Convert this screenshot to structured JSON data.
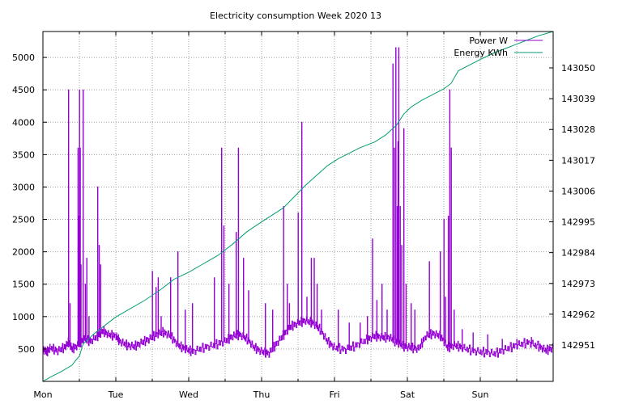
{
  "chart_data": {
    "type": "line",
    "title": "Electricity consumption Week 2020 13",
    "xlabel": "",
    "ylabel": "",
    "y2label": "",
    "grid": true,
    "legend_position": "top-right",
    "x_ticks": [
      "Mon",
      "Tue",
      "Wed",
      "Thu",
      "Fri",
      "Sat",
      "Sun"
    ],
    "xlim_days": [
      0,
      7
    ],
    "y_ticks": [
      500,
      1000,
      1500,
      2000,
      2500,
      3000,
      3500,
      4000,
      4500,
      5000
    ],
    "ylim": [
      0,
      5400
    ],
    "y2_ticks": [
      142951,
      142962,
      142973,
      142984,
      142995,
      143006,
      143017,
      143028,
      143039,
      143050
    ],
    "y2lim": [
      142938,
      143063
    ],
    "series": [
      {
        "name": "Power W",
        "color": "#9400d3",
        "axis": "y",
        "baseline": [
          [
            0.0,
            500
          ],
          [
            0.05,
            450
          ],
          [
            0.1,
            520
          ],
          [
            0.2,
            470
          ],
          [
            0.3,
            530
          ],
          [
            0.35,
            600
          ],
          [
            0.4,
            500
          ],
          [
            0.48,
            560
          ],
          [
            0.55,
            650
          ],
          [
            0.65,
            620
          ],
          [
            0.75,
            700
          ],
          [
            0.82,
            780
          ],
          [
            0.9,
            720
          ],
          [
            1.0,
            700
          ],
          [
            1.05,
            620
          ],
          [
            1.15,
            560
          ],
          [
            1.25,
            540
          ],
          [
            1.35,
            600
          ],
          [
            1.45,
            650
          ],
          [
            1.55,
            720
          ],
          [
            1.65,
            760
          ],
          [
            1.75,
            700
          ],
          [
            1.85,
            560
          ],
          [
            1.95,
            500
          ],
          [
            2.05,
            460
          ],
          [
            2.2,
            520
          ],
          [
            2.35,
            560
          ],
          [
            2.5,
            620
          ],
          [
            2.6,
            700
          ],
          [
            2.7,
            720
          ],
          [
            2.8,
            650
          ],
          [
            2.9,
            520
          ],
          [
            3.0,
            460
          ],
          [
            3.1,
            430
          ],
          [
            3.2,
            580
          ],
          [
            3.3,
            720
          ],
          [
            3.4,
            850
          ],
          [
            3.5,
            900
          ],
          [
            3.6,
            940
          ],
          [
            3.7,
            900
          ],
          [
            3.8,
            800
          ],
          [
            3.9,
            620
          ],
          [
            4.0,
            520
          ],
          [
            4.15,
            490
          ],
          [
            4.3,
            560
          ],
          [
            4.45,
            650
          ],
          [
            4.55,
            700
          ],
          [
            4.65,
            680
          ],
          [
            4.75,
            680
          ],
          [
            4.85,
            600
          ],
          [
            4.95,
            540
          ],
          [
            5.05,
            520
          ],
          [
            5.15,
            500
          ],
          [
            5.25,
            700
          ],
          [
            5.35,
            740
          ],
          [
            5.45,
            700
          ],
          [
            5.55,
            520
          ],
          [
            5.65,
            560
          ],
          [
            5.75,
            520
          ],
          [
            5.9,
            470
          ],
          [
            6.05,
            450
          ],
          [
            6.2,
            430
          ],
          [
            6.35,
            500
          ],
          [
            6.5,
            560
          ],
          [
            6.65,
            600
          ],
          [
            6.8,
            540
          ],
          [
            6.9,
            480
          ],
          [
            7.0,
            520
          ]
        ],
        "spikes": [
          [
            0.35,
            4500
          ],
          [
            0.37,
            1200
          ],
          [
            0.48,
            3600
          ],
          [
            0.49,
            2550
          ],
          [
            0.5,
            4500
          ],
          [
            0.51,
            3600
          ],
          [
            0.52,
            1800
          ],
          [
            0.55,
            4500
          ],
          [
            0.58,
            1500
          ],
          [
            0.6,
            1900
          ],
          [
            0.63,
            1000
          ],
          [
            0.75,
            3000
          ],
          [
            0.77,
            2100
          ],
          [
            0.79,
            1800
          ],
          [
            1.5,
            1700
          ],
          [
            1.55,
            1450
          ],
          [
            1.58,
            1600
          ],
          [
            1.62,
            1000
          ],
          [
            1.75,
            1600
          ],
          [
            1.85,
            2000
          ],
          [
            1.95,
            1100
          ],
          [
            2.05,
            1200
          ],
          [
            2.35,
            1600
          ],
          [
            2.45,
            3600
          ],
          [
            2.48,
            2400
          ],
          [
            2.55,
            1500
          ],
          [
            2.65,
            2300
          ],
          [
            2.68,
            3600
          ],
          [
            2.75,
            1900
          ],
          [
            2.82,
            1400
          ],
          [
            3.05,
            1200
          ],
          [
            3.15,
            1100
          ],
          [
            3.3,
            2700
          ],
          [
            3.35,
            1500
          ],
          [
            3.38,
            1200
          ],
          [
            3.5,
            2600
          ],
          [
            3.55,
            4000
          ],
          [
            3.62,
            1300
          ],
          [
            3.68,
            1900
          ],
          [
            3.72,
            1900
          ],
          [
            3.76,
            1500
          ],
          [
            3.82,
            1100
          ],
          [
            4.05,
            1100
          ],
          [
            4.2,
            900
          ],
          [
            4.35,
            900
          ],
          [
            4.45,
            1000
          ],
          [
            4.52,
            2200
          ],
          [
            4.58,
            1250
          ],
          [
            4.65,
            1500
          ],
          [
            4.72,
            1100
          ],
          [
            4.8,
            4900
          ],
          [
            4.82,
            3600
          ],
          [
            4.84,
            5150
          ],
          [
            4.86,
            2700
          ],
          [
            4.87,
            3700
          ],
          [
            4.88,
            5150
          ],
          [
            4.9,
            2700
          ],
          [
            4.92,
            2100
          ],
          [
            4.95,
            3900
          ],
          [
            4.98,
            1500
          ],
          [
            5.05,
            1200
          ],
          [
            5.1,
            1100
          ],
          [
            5.3,
            1850
          ],
          [
            5.45,
            2000
          ],
          [
            5.5,
            2500
          ],
          [
            5.52,
            1300
          ],
          [
            5.56,
            2550
          ],
          [
            5.58,
            4500
          ],
          [
            5.6,
            3600
          ],
          [
            5.64,
            1100
          ],
          [
            5.75,
            800
          ],
          [
            5.9,
            750
          ],
          [
            6.1,
            720
          ],
          [
            6.3,
            650
          ],
          [
            6.5,
            650
          ],
          [
            6.7,
            680
          ]
        ]
      },
      {
        "name": "Energy KWh",
        "color": "#009e73",
        "axis": "y2",
        "points": [
          [
            0.0,
            142938.0
          ],
          [
            0.1,
            142939.5
          ],
          [
            0.25,
            142941.5
          ],
          [
            0.4,
            142943.8
          ],
          [
            0.45,
            142945.5
          ],
          [
            0.5,
            142947.0
          ],
          [
            0.55,
            142951.3
          ],
          [
            0.7,
            142955.0
          ],
          [
            0.85,
            142958.0
          ],
          [
            1.0,
            142961.0
          ],
          [
            1.2,
            142964.0
          ],
          [
            1.4,
            142967.0
          ],
          [
            1.6,
            142970.5
          ],
          [
            1.8,
            142974.5
          ],
          [
            2.0,
            142977.0
          ],
          [
            2.2,
            142980.0
          ],
          [
            2.4,
            142983.0
          ],
          [
            2.6,
            142987.0
          ],
          [
            2.8,
            142991.5
          ],
          [
            3.0,
            142995.0
          ],
          [
            3.15,
            142997.5
          ],
          [
            3.3,
            143000.0
          ],
          [
            3.45,
            143004.0
          ],
          [
            3.6,
            143008.0
          ],
          [
            3.75,
            143011.5
          ],
          [
            3.9,
            143015.0
          ],
          [
            4.05,
            143017.5
          ],
          [
            4.2,
            143019.5
          ],
          [
            4.35,
            143021.5
          ],
          [
            4.55,
            143023.5
          ],
          [
            4.7,
            143026.0
          ],
          [
            4.85,
            143029.5
          ],
          [
            4.95,
            143033.5
          ],
          [
            5.05,
            143036.0
          ],
          [
            5.2,
            143038.5
          ],
          [
            5.35,
            143040.5
          ],
          [
            5.5,
            143042.5
          ],
          [
            5.6,
            143044.5
          ],
          [
            5.7,
            143049.0
          ],
          [
            5.85,
            143051.0
          ],
          [
            6.0,
            143053.0
          ],
          [
            6.2,
            143055.5
          ],
          [
            6.4,
            143057.5
          ],
          [
            6.6,
            143059.5
          ],
          [
            6.8,
            143061.5
          ],
          [
            7.0,
            143063.0
          ]
        ]
      }
    ]
  }
}
